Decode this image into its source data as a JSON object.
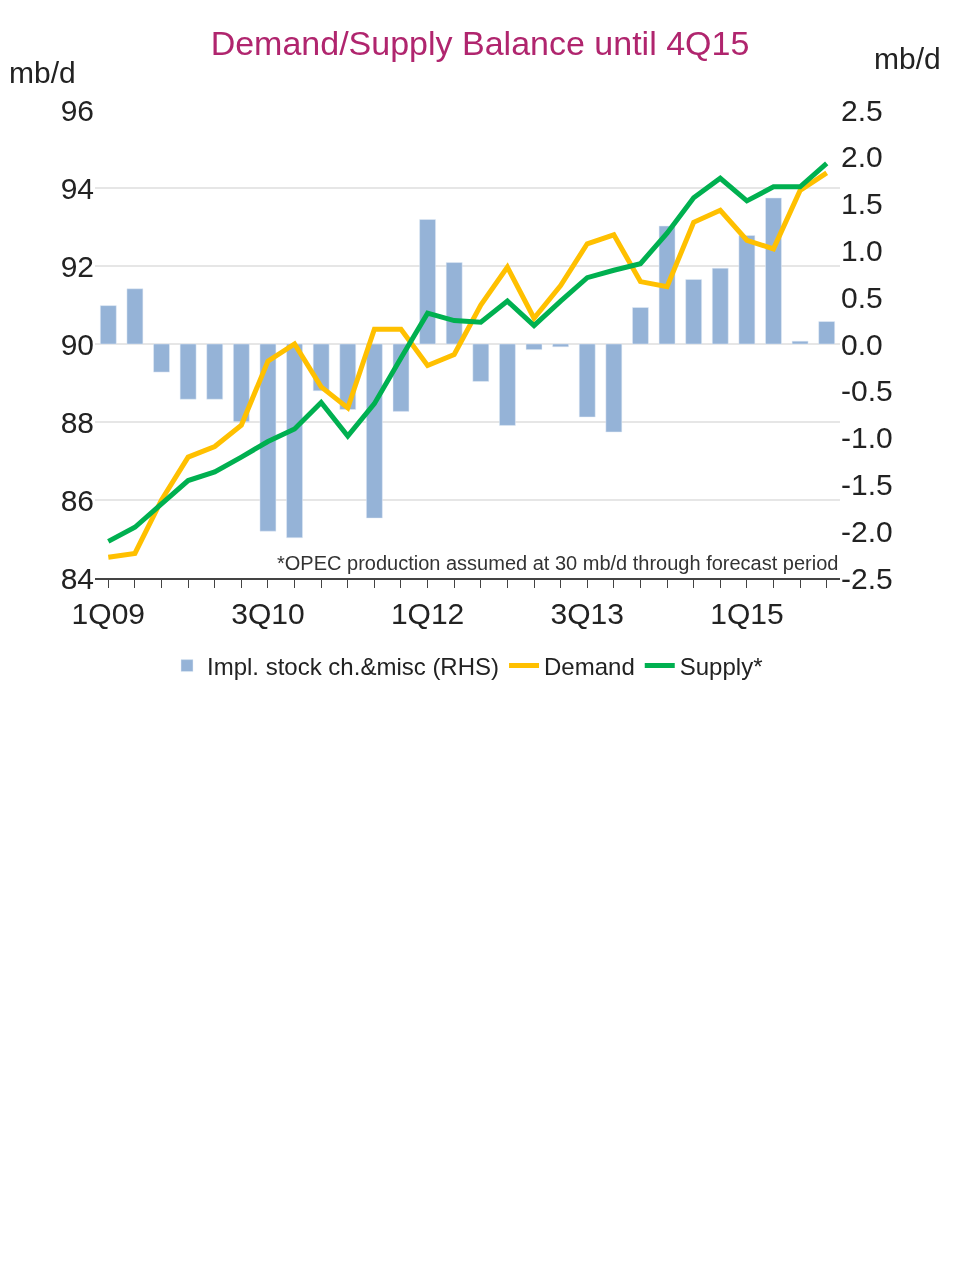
{
  "chart_data": {
    "type": "line",
    "title": "Demand/Supply Balance until 4Q15",
    "ylabel": "mb/d",
    "y2label": "mb/d",
    "annotations": [
      "*OPEC production assumed at 30 mb/d through forecast period"
    ],
    "categories": [
      "1Q09",
      null,
      null,
      null,
      null,
      null,
      "3Q10",
      null,
      null,
      null,
      null,
      null,
      "1Q12",
      null,
      null,
      null,
      null,
      null,
      "3Q13",
      null,
      null,
      null,
      null,
      null,
      "1Q15",
      null,
      null,
      null
    ],
    "series": [
      {
        "name": "Impl. stock ch.&misc (RHS)",
        "type": "bar",
        "axis": "y2",
        "color": "#95b3d7",
        "values": [
          0.41,
          0.59,
          -0.3,
          -0.59,
          -0.59,
          -0.83,
          -2.0,
          -2.07,
          -0.5,
          -0.7,
          -1.86,
          -0.72,
          1.33,
          0.87,
          -0.4,
          -0.87,
          -0.06,
          -0.03,
          -0.78,
          -0.94,
          0.39,
          1.26,
          0.69,
          0.81,
          1.16,
          1.56,
          0.03,
          0.24
        ]
      },
      {
        "name": "Demand",
        "color": "#ffc000",
        "values": [
          84.53,
          84.63,
          86.0,
          87.1,
          87.37,
          87.92,
          89.56,
          90.0,
          88.9,
          88.36,
          90.38,
          90.38,
          89.45,
          89.73,
          91.0,
          91.97,
          90.66,
          91.5,
          92.57,
          92.8,
          91.6,
          91.47,
          93.12,
          93.43,
          92.66,
          92.44,
          93.94,
          94.39
        ]
      },
      {
        "name": "Supply*",
        "color": "#00b050",
        "values": [
          84.94,
          85.3,
          85.9,
          86.5,
          86.72,
          87.1,
          87.5,
          87.82,
          88.5,
          87.64,
          88.47,
          89.64,
          90.79,
          90.6,
          90.56,
          91.1,
          90.47,
          91.1,
          91.7,
          91.89,
          92.06,
          92.84,
          93.75,
          94.25,
          93.67,
          94.03,
          94.03,
          94.63
        ]
      }
    ],
    "ylim": [
      84,
      96
    ],
    "yticks": [
      84,
      86,
      88,
      90,
      92,
      94,
      96
    ],
    "y2lim": [
      -2.5,
      2.5
    ],
    "y2ticks": [
      -2.5,
      {
        "value": -2,
        "label": "-2.0"
      },
      -1.5,
      {
        "value": -1,
        "label": "-1.0"
      },
      -0.5,
      {
        "value": 0,
        "label": "0.0"
      },
      0.5,
      {
        "value": 1,
        "label": "1.0"
      },
      1.5,
      {
        "value": 2,
        "label": "2.0"
      },
      2.5
    ],
    "grid": "y",
    "legend": "bottom"
  }
}
